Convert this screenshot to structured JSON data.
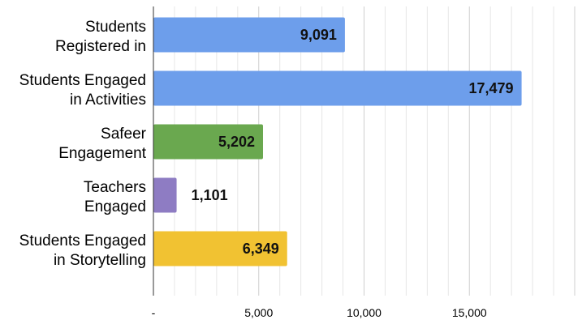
{
  "chart_data": {
    "type": "bar",
    "orientation": "horizontal",
    "categories": [
      [
        "Students",
        "Registered in"
      ],
      [
        "Students Engaged",
        "in Activities"
      ],
      [
        "Safeer",
        "Engagement"
      ],
      [
        "Teachers",
        "Engaged"
      ],
      [
        "Students Engaged",
        "in Storytelling"
      ]
    ],
    "values": [
      9091,
      17479,
      5202,
      1101,
      6349
    ],
    "value_labels": [
      "9,091",
      "17,479",
      "5,202",
      "1,101",
      "6,349"
    ],
    "colors": [
      "#6d9eeb",
      "#6d9eeb",
      "#6aa84f",
      "#8e7cc3",
      "#f1c232"
    ],
    "xlim": [
      0,
      20000
    ],
    "x_ticks": [
      0,
      5000,
      10000,
      15000
    ],
    "x_tick_labels": [
      "-",
      "5,000",
      "10,000",
      "15,000"
    ],
    "grid": true,
    "title": "",
    "xlabel": "",
    "ylabel": ""
  }
}
